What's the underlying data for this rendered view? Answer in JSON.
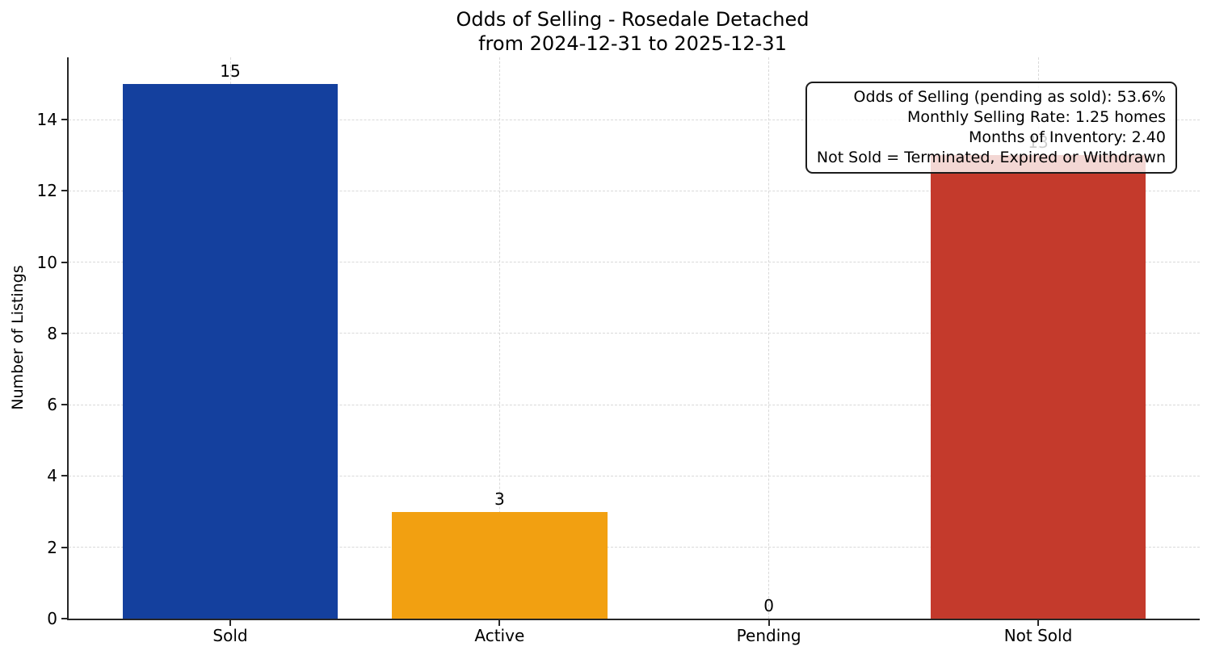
{
  "chart_data": {
    "type": "bar",
    "title": "Odds of Selling - Rosedale Detached",
    "subtitle": "from 2024-12-31 to 2025-12-31",
    "categories": [
      "Sold",
      "Active",
      "Pending",
      "Not Sold"
    ],
    "values": [
      15,
      3,
      0,
      13
    ],
    "value_labels": [
      "15",
      "3",
      "0",
      "13"
    ],
    "bar_colors": [
      "#14409e",
      "#f2a011",
      null,
      "#c43a2c"
    ],
    "xlabel": "",
    "ylabel": "Number of Listings",
    "ylim": [
      0,
      15.75
    ],
    "yticks": [
      0,
      2,
      4,
      6,
      8,
      10,
      12,
      14
    ],
    "grid": "both, dashed light gray",
    "legend": "none",
    "annotation": {
      "position": "top-right",
      "lines": [
        "Odds of Selling (pending as sold): 53.6%",
        "Monthly Selling Rate: 1.25 homes",
        "Months of Inventory: 2.40",
        "Not Sold = Terminated, Expired or Withdrawn"
      ]
    }
  },
  "colors": {
    "axis": "#262626",
    "grid": "#d9d9d9",
    "bar_sold": "#14409e",
    "bar_active": "#f2a011",
    "bar_not_sold": "#c43a2c",
    "annotation_bg": "rgba(255,255,255,0.8)",
    "annotation_border": "#1c1c1c",
    "text": "#000000"
  }
}
